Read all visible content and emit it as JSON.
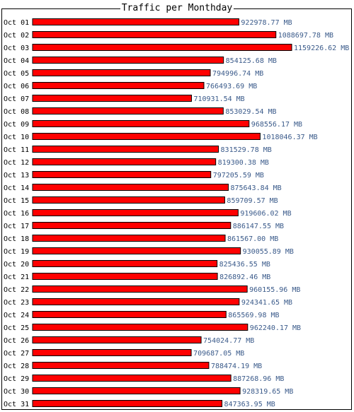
{
  "chart_data": {
    "type": "bar",
    "orientation": "horizontal",
    "title": "Traffic per Monthday",
    "unit": "MB",
    "categories": [
      "Oct 01",
      "Oct 02",
      "Oct 03",
      "Oct 04",
      "Oct 05",
      "Oct 06",
      "Oct 07",
      "Oct 08",
      "Oct 09",
      "Oct 10",
      "Oct 11",
      "Oct 12",
      "Oct 13",
      "Oct 14",
      "Oct 15",
      "Oct 16",
      "Oct 17",
      "Oct 18",
      "Oct 19",
      "Oct 20",
      "Oct 21",
      "Oct 22",
      "Oct 23",
      "Oct 24",
      "Oct 25",
      "Oct 26",
      "Oct 27",
      "Oct 28",
      "Oct 29",
      "Oct 30",
      "Oct 31"
    ],
    "values": [
      922978.77,
      1088697.78,
      1159226.62,
      854125.68,
      794996.74,
      766493.69,
      710931.54,
      853029.54,
      968556.17,
      1018046.37,
      831529.78,
      819300.38,
      797205.59,
      875643.84,
      859709.57,
      919606.02,
      886147.55,
      861567.0,
      930055.89,
      825436.55,
      826892.46,
      960155.96,
      924341.65,
      865569.98,
      962240.17,
      754024.77,
      709687.05,
      788474.19,
      887268.96,
      928319.65,
      847363.95
    ],
    "value_labels": [
      "922978.77 MB",
      "1088697.78 MB",
      "1159226.62 MB",
      "854125.68 MB",
      "794996.74 MB",
      "766493.69 MB",
      "710931.54 MB",
      "853029.54 MB",
      "968556.17 MB",
      "1018046.37 MB",
      "831529.78 MB",
      "819300.38 MB",
      "797205.59 MB",
      "875643.84 MB",
      "859709.57 MB",
      "919606.02 MB",
      "886147.55 MB",
      "861567.00 MB",
      "930055.89 MB",
      "825436.55 MB",
      "826892.46 MB",
      "960155.96 MB",
      "924341.65 MB",
      "865569.98 MB",
      "962240.17 MB",
      "754024.77 MB",
      "709687.05 MB",
      "788474.19 MB",
      "887268.96 MB",
      "928319.65 MB",
      "847363.95 MB"
    ],
    "bar_color": "#ff0000",
    "value_label_color": "#3a5a8a",
    "xlim": [
      0,
      1159226.62
    ],
    "grid": false,
    "legend": "none"
  }
}
